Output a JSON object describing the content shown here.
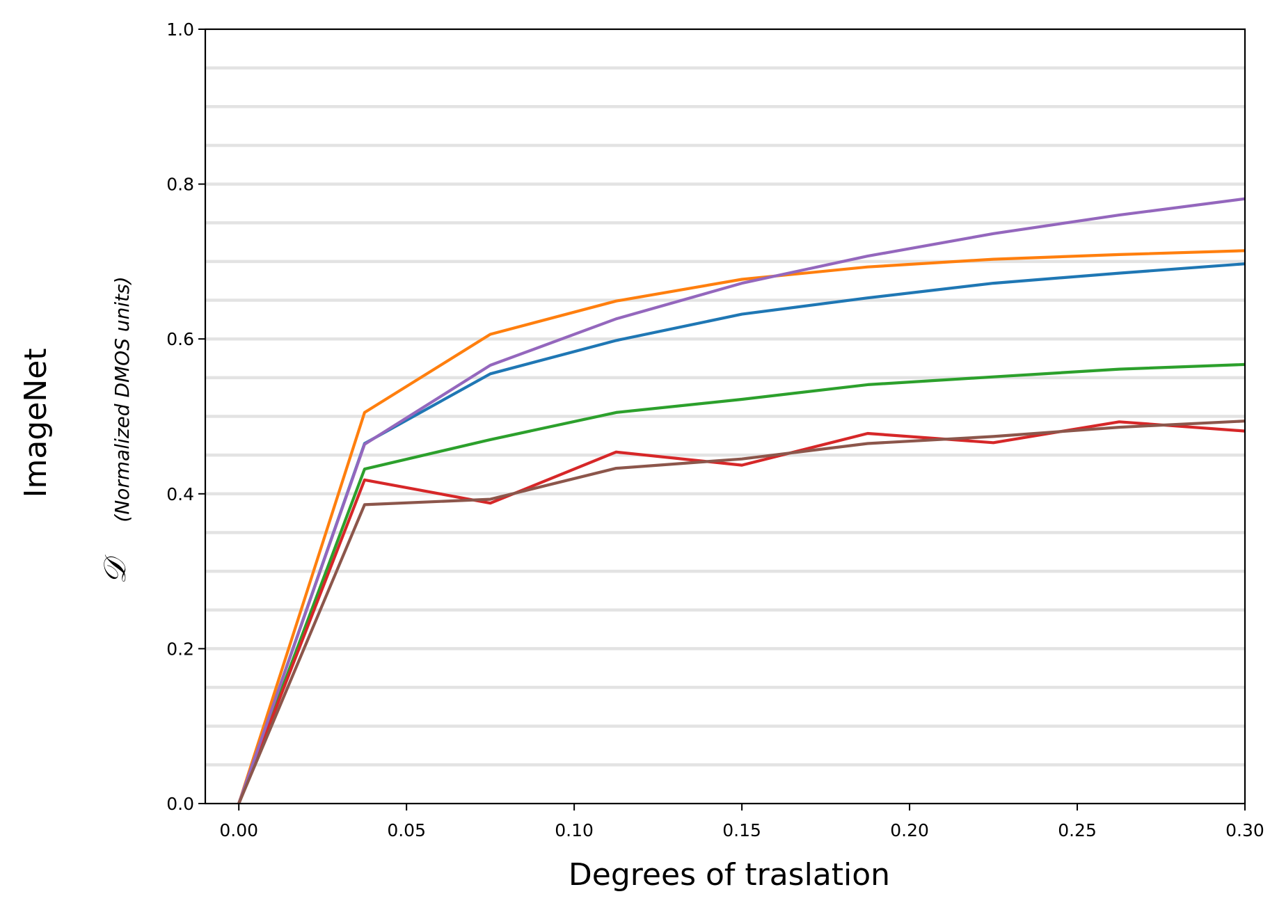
{
  "chart_data": {
    "type": "line",
    "row_label": "ImageNet",
    "xlabel": "Degrees of traslation",
    "ylabel_symbol": "𝒟",
    "ylabel_sub": "(Normalized DMOS units)",
    "xlim": [
      -0.01,
      0.3
    ],
    "ylim": [
      0.0,
      1.0
    ],
    "xticks": [
      0.0,
      0.05,
      0.1,
      0.15,
      0.2,
      0.25,
      0.3
    ],
    "xtick_labels": [
      "0.00",
      "0.05",
      "0.10",
      "0.15",
      "0.20",
      "0.25",
      "0.30"
    ],
    "yticks": [
      0.0,
      0.2,
      0.4,
      0.6,
      0.8,
      1.0
    ],
    "ytick_labels": [
      "0.0",
      "0.2",
      "0.4",
      "0.6",
      "0.8",
      "1.0"
    ],
    "grid": "horizontal, every 0.05",
    "x": [
      0.0,
      0.0375,
      0.075,
      0.1125,
      0.15,
      0.1875,
      0.225,
      0.2625,
      0.3
    ],
    "series": [
      {
        "color": "#1f77b4",
        "values": [
          0.0,
          0.465,
          0.555,
          0.598,
          0.632,
          0.653,
          0.672,
          0.685,
          0.697
        ]
      },
      {
        "color": "#ff7f0e",
        "values": [
          0.0,
          0.505,
          0.606,
          0.649,
          0.677,
          0.693,
          0.703,
          0.709,
          0.714
        ]
      },
      {
        "color": "#2ca02c",
        "values": [
          0.0,
          0.432,
          0.47,
          0.505,
          0.522,
          0.541,
          0.551,
          0.561,
          0.567
        ]
      },
      {
        "color": "#d62728",
        "values": [
          0.0,
          0.418,
          0.388,
          0.454,
          0.437,
          0.478,
          0.466,
          0.493,
          0.481
        ]
      },
      {
        "color": "#9467bd",
        "values": [
          0.0,
          0.464,
          0.566,
          0.626,
          0.672,
          0.707,
          0.736,
          0.76,
          0.781
        ]
      },
      {
        "color": "#8c564b",
        "values": [
          0.0,
          0.386,
          0.393,
          0.433,
          0.445,
          0.465,
          0.474,
          0.486,
          0.494
        ]
      }
    ]
  }
}
